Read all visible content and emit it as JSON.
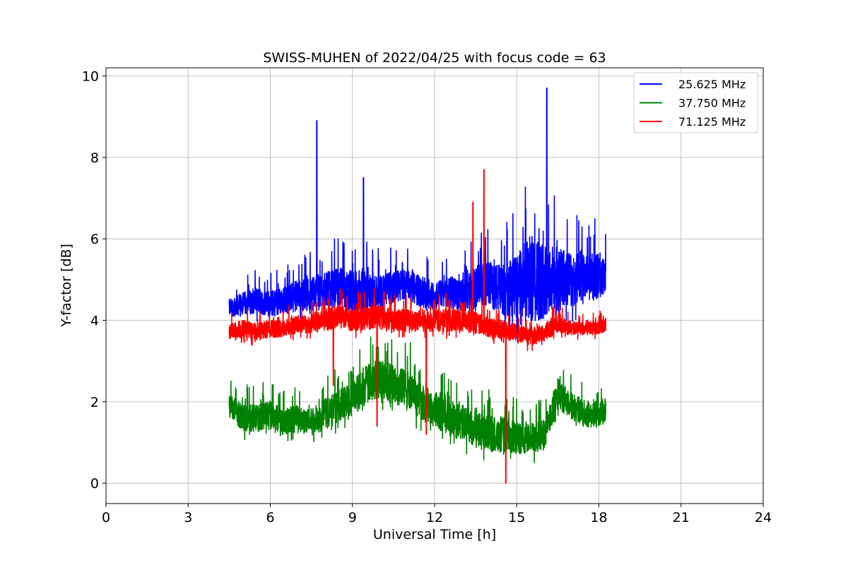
{
  "chart_data": {
    "type": "line",
    "title": "SWISS-MUHEN of 2022/04/25 with focus code = 63",
    "xlabel": "Universal Time [h]",
    "ylabel": "Y-factor [dB]",
    "xlim": [
      0,
      24
    ],
    "ylim": [
      -0.5,
      10.2
    ],
    "x_ticks": [
      0,
      3,
      6,
      9,
      12,
      15,
      18,
      21,
      24
    ],
    "y_ticks": [
      0,
      2,
      4,
      6,
      8,
      10
    ],
    "grid": true,
    "legend_position": "top-right",
    "x_range_of_data": [
      4.5,
      18.25
    ],
    "series": [
      {
        "name": "25.625 MHz",
        "color": "#0000ff",
        "x": [
          4.5,
          5.0,
          5.5,
          6.0,
          6.5,
          7.0,
          7.5,
          7.7,
          8.0,
          8.5,
          9.0,
          9.4,
          9.5,
          10.0,
          10.5,
          11.0,
          11.5,
          12.0,
          12.5,
          13.0,
          13.5,
          14.0,
          14.5,
          15.0,
          15.5,
          16.0,
          16.1,
          16.5,
          17.0,
          17.5,
          18.0,
          18.25
        ],
        "values": [
          4.3,
          4.4,
          4.5,
          4.4,
          4.5,
          4.6,
          4.7,
          8.9,
          4.6,
          4.8,
          4.7,
          7.5,
          4.5,
          4.7,
          4.8,
          4.9,
          4.7,
          4.6,
          4.7,
          4.6,
          4.8,
          4.9,
          4.7,
          4.8,
          5.0,
          5.1,
          9.7,
          4.9,
          5.0,
          5.0,
          5.1,
          5.0
        ],
        "spread": [
          0.4,
          0.5,
          0.6,
          0.6,
          0.6,
          0.7,
          0.7,
          0.5,
          0.8,
          0.9,
          1.0,
          0.8,
          1.1,
          0.8,
          0.7,
          0.7,
          0.7,
          0.6,
          0.7,
          0.7,
          1.0,
          1.0,
          1.2,
          1.5,
          2.0,
          2.2,
          2.0,
          1.8,
          1.2,
          1.1,
          1.0,
          0.8
        ]
      },
      {
        "name": "37.750 MHz",
        "color": "#008000",
        "x": [
          4.5,
          5.0,
          5.5,
          6.0,
          6.5,
          7.0,
          7.5,
          8.0,
          8.5,
          9.0,
          9.5,
          10.0,
          10.5,
          11.0,
          11.5,
          12.0,
          12.5,
          13.0,
          13.5,
          14.0,
          14.5,
          15.0,
          15.5,
          16.0,
          16.5,
          17.0,
          17.5,
          18.0,
          18.25
        ],
        "values": [
          1.9,
          1.6,
          1.6,
          1.7,
          1.5,
          1.6,
          1.5,
          1.7,
          1.9,
          2.1,
          2.4,
          2.6,
          2.4,
          2.3,
          2.0,
          1.8,
          1.6,
          1.5,
          1.3,
          1.2,
          1.2,
          1.1,
          1.1,
          1.2,
          2.2,
          1.9,
          1.7,
          1.7,
          1.8
        ],
        "spread": [
          0.5,
          0.6,
          0.6,
          0.6,
          0.6,
          0.6,
          0.6,
          0.7,
          0.7,
          0.8,
          0.9,
          0.9,
          0.9,
          0.9,
          0.8,
          0.8,
          0.8,
          0.8,
          0.8,
          0.8,
          0.8,
          0.7,
          0.7,
          0.7,
          0.7,
          0.6,
          0.6,
          0.6,
          0.6
        ]
      },
      {
        "name": "71.125 MHz",
        "color": "#ff0000",
        "x": [
          4.5,
          5.0,
          5.5,
          6.0,
          6.5,
          7.0,
          7.5,
          8.0,
          8.3,
          8.5,
          9.0,
          9.5,
          9.9,
          10.0,
          10.5,
          11.0,
          11.5,
          11.7,
          12.0,
          12.5,
          13.0,
          13.4,
          13.5,
          13.8,
          14.0,
          14.5,
          14.6,
          15.0,
          15.5,
          16.0,
          16.5,
          17.0,
          17.5,
          18.0,
          18.25
        ],
        "values": [
          3.7,
          3.8,
          3.7,
          3.8,
          3.8,
          3.9,
          3.9,
          4.0,
          2.4,
          4.1,
          4.0,
          4.3,
          1.4,
          4.1,
          4.0,
          4.0,
          4.0,
          1.2,
          4.0,
          4.0,
          4.0,
          6.9,
          4.2,
          7.7,
          3.7,
          3.6,
          0.0,
          3.6,
          3.6,
          3.7,
          3.9,
          3.8,
          3.8,
          3.8,
          3.9
        ],
        "spread": [
          0.4,
          0.4,
          0.4,
          0.4,
          0.4,
          0.4,
          0.4,
          0.5,
          0.3,
          0.5,
          0.5,
          0.6,
          0.3,
          0.5,
          0.5,
          0.5,
          0.5,
          0.3,
          0.5,
          0.5,
          0.5,
          0.4,
          0.6,
          0.4,
          0.5,
          0.5,
          0.3,
          0.4,
          0.4,
          0.4,
          0.4,
          0.3,
          0.3,
          0.3,
          0.3
        ]
      }
    ]
  }
}
